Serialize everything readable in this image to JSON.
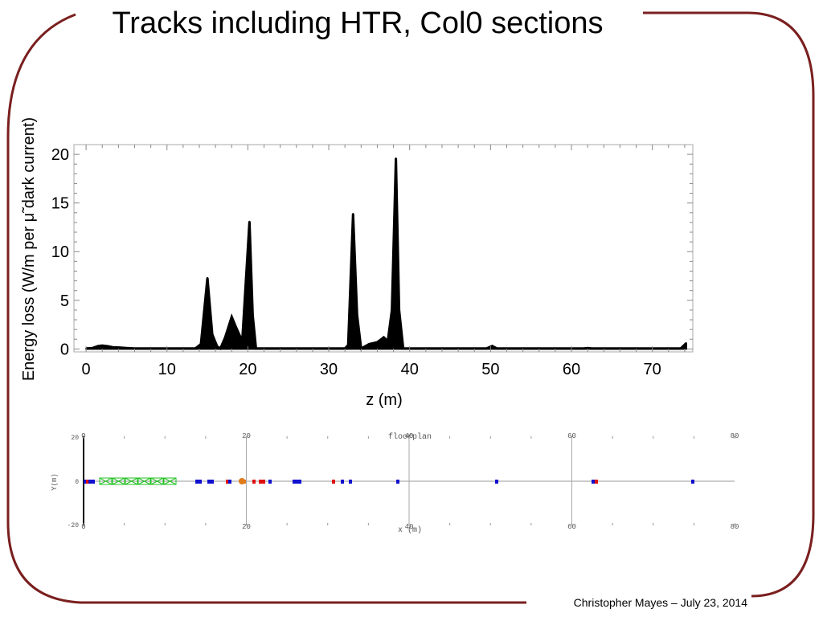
{
  "slide": {
    "title": "Tracks including HTR, Col0 sections",
    "footer": "Christopher Mayes – July 23, 2014",
    "frame_color": "#7a1f1f"
  },
  "chart_data": {
    "type": "area",
    "title": "",
    "xlabel": "z (m)",
    "ylabel": "Energy loss (W/m per μ̃  dark current)",
    "xlim": [
      -1.5,
      75
    ],
    "ylim": [
      -0.3,
      21
    ],
    "xticks": [
      0,
      10,
      20,
      30,
      40,
      50,
      60,
      70
    ],
    "yticks": [
      0,
      5,
      10,
      15,
      20
    ],
    "fill_color": "#000000",
    "grid": false,
    "series": [
      {
        "x": [
          0,
          0.8,
          1.5,
          2,
          2.7,
          3.3,
          4,
          5,
          6,
          8,
          10,
          12,
          13.5,
          14.2,
          15,
          15.6,
          16.2,
          16.6,
          17.2,
          18,
          18.5,
          19.3,
          20.2,
          20.6,
          21,
          24,
          28,
          32,
          32.4,
          33,
          33.5,
          34,
          35,
          36,
          36.8,
          37.3,
          37.8,
          38.3,
          38.7,
          39.2,
          40,
          45,
          49.5,
          50.2,
          50.8,
          55,
          60,
          61.5,
          62,
          62.5,
          70,
          73.5,
          74.2
        ],
        "y": [
          0.05,
          0.1,
          0.3,
          0.35,
          0.28,
          0.18,
          0.15,
          0.1,
          0.05,
          0.05,
          0.05,
          0.05,
          0.05,
          0.5,
          7.3,
          1.5,
          0.25,
          0.05,
          1.2,
          3.3,
          2.3,
          0.8,
          13.1,
          3.5,
          0.05,
          0.05,
          0.05,
          0.05,
          0.4,
          13.9,
          3.5,
          0.05,
          0.5,
          0.7,
          1.2,
          0.8,
          4,
          19.6,
          4,
          0.05,
          0.05,
          0.05,
          0.05,
          0.3,
          0.05,
          0.05,
          0.05,
          0.05,
          0.1,
          0.05,
          0.05,
          0.05,
          0.6
        ]
      }
    ]
  },
  "floorplan": {
    "title": "floorplan",
    "xlabel": "x (m)",
    "ylabel": "Y(m)",
    "top_ticks": [
      "0",
      "20",
      "40",
      "60",
      "80"
    ],
    "bottom_ticks": [
      "0",
      "20",
      "40",
      "60",
      "80"
    ],
    "left_ticks": [
      "20",
      "0",
      "-20"
    ],
    "colors": {
      "quad_red": "#e01010",
      "dipole_blue": "#1010d0",
      "cavity_green": "#22c122",
      "orange": "#e07a1a"
    }
  }
}
